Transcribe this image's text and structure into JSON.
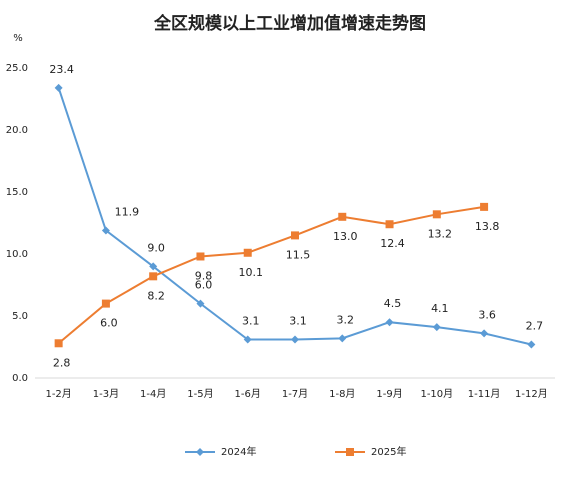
{
  "chart_data": {
    "type": "line",
    "title": "全区规模以上工业增加值增速走势图",
    "y_label": "%",
    "categories": [
      "1-2月",
      "1-3月",
      "1-4月",
      "1-5月",
      "1-6月",
      "1-7月",
      "1-8月",
      "1-9月",
      "1-10月",
      "1-11月",
      "1-12月"
    ],
    "series": [
      {
        "name": "2024年",
        "color": "#5b9bd5",
        "marker": "diamond",
        "values": [
          23.4,
          11.9,
          9.0,
          6.0,
          3.1,
          3.1,
          3.2,
          4.5,
          4.1,
          3.6,
          2.7
        ],
        "value_labels": [
          "23.4",
          "11.9",
          "9.0",
          "6.0",
          "3.1",
          "3.1",
          "3.2",
          "4.5",
          "4.1",
          "3.6",
          "2.7"
        ]
      },
      {
        "name": "2025年",
        "color": "#ed7d31",
        "marker": "square",
        "values": [
          2.8,
          6.0,
          8.2,
          9.8,
          10.1,
          11.5,
          13.0,
          12.4,
          13.2,
          13.8,
          null
        ],
        "value_labels": [
          "2.8",
          "6.0",
          "8.2",
          "9.8",
          "10.1",
          "11.5",
          "13.0",
          "12.4",
          "13.2",
          "13.8",
          null
        ]
      }
    ],
    "ylim": [
      0,
      25
    ],
    "yticks": [
      {
        "value": 0,
        "label": "0.0"
      },
      {
        "value": 5,
        "label": "5.0"
      },
      {
        "value": 10,
        "label": "10.0"
      },
      {
        "value": 15,
        "label": "15.0"
      },
      {
        "value": 20,
        "label": "20.0"
      },
      {
        "value": 25,
        "label": "25.0"
      }
    ],
    "grid": false,
    "legend": "bottom"
  }
}
